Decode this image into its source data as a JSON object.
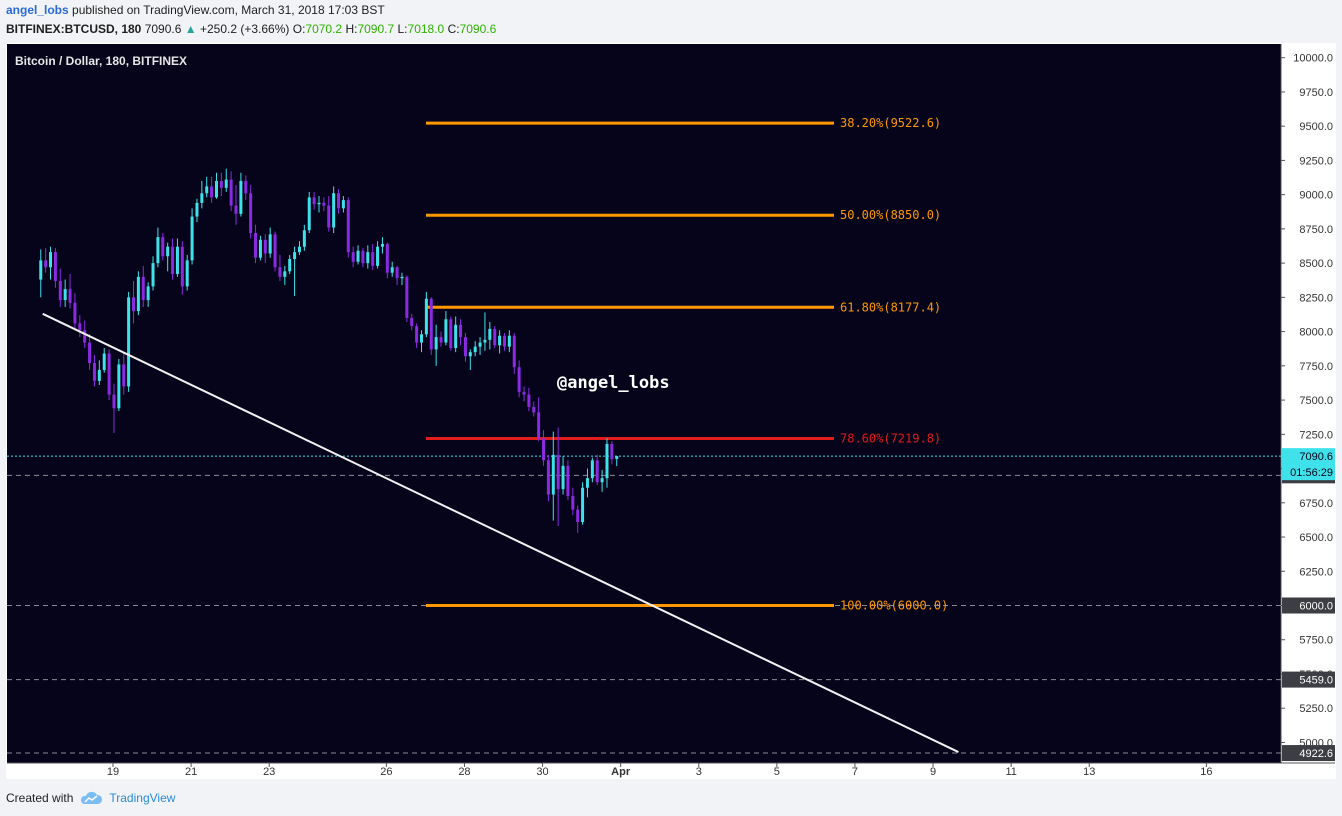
{
  "header": {
    "author": "angel_lobs",
    "published_text": "published on TradingView.com, March 31, 2018 17:03 BST",
    "symbol": "BITFINEX:BTCUSD, 180",
    "last_price": "7090.6",
    "change": "+250.2 (+3.66%)",
    "ohlc": [
      {
        "label": "O:",
        "value": "7070.2"
      },
      {
        "label": "H:",
        "value": "7090.7"
      },
      {
        "label": "L:",
        "value": "7018.0"
      },
      {
        "label": "C:",
        "value": "7090.6"
      }
    ]
  },
  "footer": {
    "created_with": "Created with",
    "brand": "TradingView"
  },
  "colors": {
    "background": "#06041a",
    "bull": "#3fe2ea",
    "bear": "#8a2be2",
    "fib": "#ff9800",
    "fib_key": "#e21b1b",
    "trendline": "#f2f2f2",
    "price_line": "#3fe2ea"
  },
  "chart_data": {
    "type": "candlestick",
    "title": "Bitcoin / Dollar, 180, BITFINEX",
    "watermark": "@angel_lobs",
    "y_ticks": [
      10000,
      9750,
      9500,
      9250,
      9000,
      8750,
      8500,
      8250,
      8000,
      7750,
      7500,
      7250,
      7000,
      6750,
      6500,
      6250,
      6000,
      5750,
      5500,
      5250,
      5000
    ],
    "ylim": [
      4850,
      10100
    ],
    "x_labels": [
      "19",
      "21",
      "23",
      "26",
      "28",
      "30",
      "Apr",
      "3",
      "5",
      "7",
      "9",
      "11",
      "13",
      "16"
    ],
    "fib_levels": [
      {
        "label": "38.20%(9522.6)",
        "price": 9522.6,
        "key": false
      },
      {
        "label": "50.00%(8850.0)",
        "price": 8850.0,
        "key": false
      },
      {
        "label": "61.80%(8177.4)",
        "price": 8177.4,
        "key": false
      },
      {
        "label": "78.60%(7219.8)",
        "price": 7219.8,
        "key": true
      },
      {
        "label": "100.00%(6000.0)",
        "price": 6000.0,
        "key": false
      }
    ],
    "horizontal_levels": [
      {
        "price": 6950.6,
        "label": "6950.6"
      },
      {
        "price": 6000.0,
        "label": "6000.0"
      },
      {
        "price": 5459.0,
        "label": "5459.0"
      },
      {
        "price": 4922.6,
        "label": "4922.6"
      }
    ],
    "current_price": {
      "price": 7090.6,
      "label": "7090.6",
      "countdown": "01:56:29"
    },
    "trendline": {
      "start": {
        "date": "Mar 17",
        "price": 8130
      },
      "end": {
        "date": "Apr 9",
        "price": 4930
      }
    },
    "candles": [
      {
        "o": 8380,
        "h": 8600,
        "l": 8250,
        "c": 8520
      },
      {
        "o": 8520,
        "h": 8610,
        "l": 8430,
        "c": 8470
      },
      {
        "o": 8470,
        "h": 8620,
        "l": 8380,
        "c": 8580
      },
      {
        "o": 8580,
        "h": 8610,
        "l": 8320,
        "c": 8370
      },
      {
        "o": 8370,
        "h": 8460,
        "l": 8180,
        "c": 8230
      },
      {
        "o": 8230,
        "h": 8380,
        "l": 8180,
        "c": 8310
      },
      {
        "o": 8310,
        "h": 8420,
        "l": 8170,
        "c": 8210
      },
      {
        "o": 8210,
        "h": 8280,
        "l": 8020,
        "c": 8060
      },
      {
        "o": 8060,
        "h": 8120,
        "l": 7960,
        "c": 8010
      },
      {
        "o": 8010,
        "h": 8080,
        "l": 7880,
        "c": 7920
      },
      {
        "o": 7920,
        "h": 7980,
        "l": 7720,
        "c": 7770
      },
      {
        "o": 7770,
        "h": 7830,
        "l": 7600,
        "c": 7640
      },
      {
        "o": 7640,
        "h": 7790,
        "l": 7610,
        "c": 7720
      },
      {
        "o": 7720,
        "h": 7880,
        "l": 7700,
        "c": 7840
      },
      {
        "o": 7840,
        "h": 7870,
        "l": 7500,
        "c": 7540
      },
      {
        "o": 7540,
        "h": 7620,
        "l": 7260,
        "c": 7440
      },
      {
        "o": 7440,
        "h": 7800,
        "l": 7420,
        "c": 7760
      },
      {
        "o": 7760,
        "h": 7850,
        "l": 7540,
        "c": 7600
      },
      {
        "o": 7600,
        "h": 8290,
        "l": 7560,
        "c": 8250
      },
      {
        "o": 8250,
        "h": 8370,
        "l": 8060,
        "c": 8150
      },
      {
        "o": 8150,
        "h": 8440,
        "l": 8120,
        "c": 8400
      },
      {
        "o": 8400,
        "h": 8480,
        "l": 8180,
        "c": 8230
      },
      {
        "o": 8230,
        "h": 8360,
        "l": 8180,
        "c": 8330
      },
      {
        "o": 8330,
        "h": 8550,
        "l": 8300,
        "c": 8500
      },
      {
        "o": 8500,
        "h": 8760,
        "l": 8470,
        "c": 8690
      },
      {
        "o": 8690,
        "h": 8720,
        "l": 8520,
        "c": 8550
      },
      {
        "o": 8550,
        "h": 8650,
        "l": 8440,
        "c": 8620
      },
      {
        "o": 8620,
        "h": 8680,
        "l": 8380,
        "c": 8420
      },
      {
        "o": 8420,
        "h": 8680,
        "l": 8400,
        "c": 8620
      },
      {
        "o": 8620,
        "h": 8660,
        "l": 8270,
        "c": 8330
      },
      {
        "o": 8330,
        "h": 8560,
        "l": 8300,
        "c": 8520
      },
      {
        "o": 8520,
        "h": 8900,
        "l": 8490,
        "c": 8840
      },
      {
        "o": 8840,
        "h": 8970,
        "l": 8800,
        "c": 8940
      },
      {
        "o": 8940,
        "h": 9100,
        "l": 8900,
        "c": 9010
      },
      {
        "o": 9010,
        "h": 9130,
        "l": 8980,
        "c": 9060
      },
      {
        "o": 9060,
        "h": 9130,
        "l": 8940,
        "c": 8980
      },
      {
        "o": 8980,
        "h": 9160,
        "l": 8970,
        "c": 9100
      },
      {
        "o": 9100,
        "h": 9160,
        "l": 8990,
        "c": 9050
      },
      {
        "o": 9050,
        "h": 9190,
        "l": 9020,
        "c": 9110
      },
      {
        "o": 9110,
        "h": 9170,
        "l": 8880,
        "c": 8920
      },
      {
        "o": 8920,
        "h": 9070,
        "l": 8780,
        "c": 8860
      },
      {
        "o": 8860,
        "h": 9160,
        "l": 8840,
        "c": 9100
      },
      {
        "o": 9100,
        "h": 9140,
        "l": 8960,
        "c": 9010
      },
      {
        "o": 9010,
        "h": 9070,
        "l": 8680,
        "c": 8720
      },
      {
        "o": 8720,
        "h": 8780,
        "l": 8500,
        "c": 8540
      },
      {
        "o": 8540,
        "h": 8700,
        "l": 8520,
        "c": 8670
      },
      {
        "o": 8670,
        "h": 8710,
        "l": 8500,
        "c": 8570
      },
      {
        "o": 8570,
        "h": 8760,
        "l": 8540,
        "c": 8710
      },
      {
        "o": 8710,
        "h": 8730,
        "l": 8440,
        "c": 8470
      },
      {
        "o": 8470,
        "h": 8560,
        "l": 8370,
        "c": 8400
      },
      {
        "o": 8400,
        "h": 8480,
        "l": 8340,
        "c": 8440
      },
      {
        "o": 8440,
        "h": 8560,
        "l": 8420,
        "c": 8530
      },
      {
        "o": 8530,
        "h": 8620,
        "l": 8260,
        "c": 8580
      },
      {
        "o": 8580,
        "h": 8660,
        "l": 8560,
        "c": 8620
      },
      {
        "o": 8620,
        "h": 8780,
        "l": 8590,
        "c": 8740
      },
      {
        "o": 8740,
        "h": 9020,
        "l": 8720,
        "c": 8980
      },
      {
        "o": 8980,
        "h": 9020,
        "l": 8890,
        "c": 8930
      },
      {
        "o": 8930,
        "h": 8990,
        "l": 8870,
        "c": 8940
      },
      {
        "o": 8940,
        "h": 8980,
        "l": 8880,
        "c": 8920
      },
      {
        "o": 8920,
        "h": 8990,
        "l": 8730,
        "c": 8760
      },
      {
        "o": 8760,
        "h": 9060,
        "l": 8720,
        "c": 9010
      },
      {
        "o": 9010,
        "h": 9040,
        "l": 8860,
        "c": 8900
      },
      {
        "o": 8900,
        "h": 8990,
        "l": 8870,
        "c": 8960
      },
      {
        "o": 8960,
        "h": 8980,
        "l": 8540,
        "c": 8580
      },
      {
        "o": 8580,
        "h": 8620,
        "l": 8470,
        "c": 8510
      },
      {
        "o": 8510,
        "h": 8630,
        "l": 8490,
        "c": 8590
      },
      {
        "o": 8590,
        "h": 8610,
        "l": 8470,
        "c": 8500
      },
      {
        "o": 8500,
        "h": 8630,
        "l": 8460,
        "c": 8580
      },
      {
        "o": 8580,
        "h": 8640,
        "l": 8450,
        "c": 8480
      },
      {
        "o": 8480,
        "h": 8660,
        "l": 8460,
        "c": 8620
      },
      {
        "o": 8620,
        "h": 8690,
        "l": 8570,
        "c": 8640
      },
      {
        "o": 8640,
        "h": 8650,
        "l": 8390,
        "c": 8430
      },
      {
        "o": 8430,
        "h": 8510,
        "l": 8400,
        "c": 8470
      },
      {
        "o": 8470,
        "h": 8480,
        "l": 8340,
        "c": 8390
      },
      {
        "o": 8390,
        "h": 8430,
        "l": 8340,
        "c": 8400
      },
      {
        "o": 8400,
        "h": 8410,
        "l": 8070,
        "c": 8100
      },
      {
        "o": 8100,
        "h": 8130,
        "l": 8010,
        "c": 8040
      },
      {
        "o": 8040,
        "h": 8060,
        "l": 7880,
        "c": 7920
      },
      {
        "o": 7920,
        "h": 8010,
        "l": 7850,
        "c": 7980
      },
      {
        "o": 7980,
        "h": 8290,
        "l": 7960,
        "c": 8240
      },
      {
        "o": 8240,
        "h": 8250,
        "l": 7830,
        "c": 7870
      },
      {
        "o": 7870,
        "h": 8050,
        "l": 7750,
        "c": 7960
      },
      {
        "o": 7960,
        "h": 8000,
        "l": 7890,
        "c": 7920
      },
      {
        "o": 7920,
        "h": 8150,
        "l": 7900,
        "c": 8090
      },
      {
        "o": 8090,
        "h": 8110,
        "l": 7860,
        "c": 7880
      },
      {
        "o": 7880,
        "h": 8110,
        "l": 7850,
        "c": 8050
      },
      {
        "o": 8050,
        "h": 8090,
        "l": 7900,
        "c": 7960
      },
      {
        "o": 7960,
        "h": 7990,
        "l": 7780,
        "c": 7820
      },
      {
        "o": 7820,
        "h": 7870,
        "l": 7720,
        "c": 7850
      },
      {
        "o": 7850,
        "h": 7930,
        "l": 7820,
        "c": 7890
      },
      {
        "o": 7890,
        "h": 7960,
        "l": 7830,
        "c": 7920
      },
      {
        "o": 7920,
        "h": 8140,
        "l": 7860,
        "c": 7940
      },
      {
        "o": 7940,
        "h": 8070,
        "l": 7870,
        "c": 8020
      },
      {
        "o": 8020,
        "h": 8040,
        "l": 7880,
        "c": 7900
      },
      {
        "o": 7900,
        "h": 8010,
        "l": 7840,
        "c": 7970
      },
      {
        "o": 7970,
        "h": 7990,
        "l": 7860,
        "c": 7890
      },
      {
        "o": 7890,
        "h": 8010,
        "l": 7850,
        "c": 7970
      },
      {
        "o": 7970,
        "h": 7990,
        "l": 7690,
        "c": 7740
      },
      {
        "o": 7740,
        "h": 7790,
        "l": 7520,
        "c": 7560
      },
      {
        "o": 7560,
        "h": 7600,
        "l": 7490,
        "c": 7540
      },
      {
        "o": 7540,
        "h": 7590,
        "l": 7420,
        "c": 7450
      },
      {
        "o": 7450,
        "h": 7490,
        "l": 7380,
        "c": 7410
      },
      {
        "o": 7410,
        "h": 7520,
        "l": 7200,
        "c": 7220
      },
      {
        "o": 7220,
        "h": 7280,
        "l": 7020,
        "c": 7060
      },
      {
        "o": 7060,
        "h": 7100,
        "l": 6760,
        "c": 6810
      },
      {
        "o": 6810,
        "h": 7270,
        "l": 6620,
        "c": 7100
      },
      {
        "o": 7100,
        "h": 7300,
        "l": 6580,
        "c": 6850
      },
      {
        "o": 6850,
        "h": 7090,
        "l": 6810,
        "c": 7020
      },
      {
        "o": 7020,
        "h": 7060,
        "l": 6770,
        "c": 6800
      },
      {
        "o": 6800,
        "h": 6860,
        "l": 6660,
        "c": 6700
      },
      {
        "o": 6700,
        "h": 6730,
        "l": 6530,
        "c": 6610
      },
      {
        "o": 6610,
        "h": 6900,
        "l": 6590,
        "c": 6860
      },
      {
        "o": 6860,
        "h": 7000,
        "l": 6790,
        "c": 6930
      },
      {
        "o": 6930,
        "h": 7080,
        "l": 6900,
        "c": 7060
      },
      {
        "o": 7060,
        "h": 7100,
        "l": 6880,
        "c": 6900
      },
      {
        "o": 6900,
        "h": 6990,
        "l": 6830,
        "c": 6930
      },
      {
        "o": 6930,
        "h": 7220,
        "l": 6860,
        "c": 7180
      },
      {
        "o": 7180,
        "h": 7200,
        "l": 7030,
        "c": 7070
      },
      {
        "o": 7070,
        "h": 7091,
        "l": 7018,
        "c": 7091
      }
    ]
  }
}
